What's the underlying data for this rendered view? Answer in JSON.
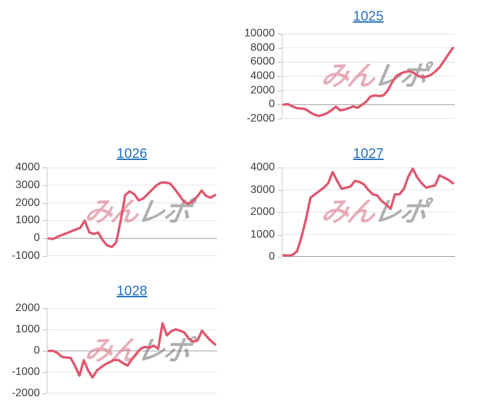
{
  "colors": {
    "line": "#e0566e",
    "title_link": "#2570bd",
    "grid": "#e3e3e3",
    "zero_line": "#9b9b9b",
    "axis_line": "#c8c8c8",
    "tick_text": "#3d3d3d",
    "watermark_pink": "rgba(214,106,124,0.55)",
    "watermark_gray": "rgba(110,110,110,0.55)"
  },
  "watermark": {
    "text": "みんレポ",
    "pink_part": "みん",
    "gray_part": "レポ"
  },
  "chart_data": [
    {
      "type": "line",
      "title": "1025",
      "xlabel": "",
      "ylabel": "",
      "ylim": [
        -2000,
        10000
      ],
      "ytick_step": 2000,
      "yticks": [
        "10000",
        "8000",
        "6000",
        "4000",
        "2000",
        "0",
        "-2000"
      ],
      "grid": true,
      "legend": "none",
      "values": [
        0,
        50,
        -250,
        -500,
        -550,
        -650,
        -1050,
        -1400,
        -1600,
        -1450,
        -1200,
        -800,
        -300,
        -800,
        -700,
        -500,
        -250,
        -450,
        -50,
        400,
        1150,
        1300,
        1200,
        1300,
        2000,
        3150,
        4050,
        4400,
        4600,
        4700,
        4450,
        4050,
        3850,
        3950,
        4200,
        4700,
        5300,
        6200,
        7100,
        8000
      ]
    },
    {
      "type": "line",
      "title": "1026",
      "xlabel": "",
      "ylabel": "",
      "ylim": [
        -1000,
        4000
      ],
      "ytick_step": 1000,
      "yticks": [
        "4000",
        "3000",
        "2000",
        "1000",
        "0",
        "-1000"
      ],
      "grid": true,
      "legend": "none",
      "values": [
        0,
        -30,
        100,
        200,
        300,
        400,
        500,
        600,
        1000,
        350,
        250,
        330,
        -100,
        -400,
        -480,
        -230,
        1000,
        2450,
        2650,
        2500,
        2150,
        2250,
        2500,
        2750,
        3000,
        3150,
        3150,
        3100,
        2800,
        2450,
        2100,
        1950,
        2100,
        2350,
        2700,
        2400,
        2300,
        2450
      ]
    },
    {
      "type": "line",
      "title": "1027",
      "xlabel": "",
      "ylabel": "",
      "ylim": [
        0,
        4000
      ],
      "ytick_step": 1000,
      "yticks": [
        "4000",
        "3000",
        "2000",
        "1000",
        "0"
      ],
      "grid": true,
      "legend": "none",
      "values": [
        70,
        50,
        90,
        250,
        900,
        1700,
        2650,
        2800,
        2950,
        3100,
        3300,
        3800,
        3400,
        3050,
        3100,
        3150,
        3400,
        3350,
        3250,
        3000,
        2800,
        2750,
        2500,
        2350,
        2150,
        2800,
        2800,
        3050,
        3600,
        3950,
        3550,
        3300,
        3100,
        3150,
        3200,
        3650,
        3550,
        3450,
        3300
      ]
    },
    {
      "type": "line",
      "title": "1028",
      "xlabel": "",
      "ylabel": "",
      "ylim": [
        -2000,
        2000
      ],
      "ytick_step": 1000,
      "yticks": [
        "2000",
        "1000",
        "0",
        "-1000",
        "-2000"
      ],
      "grid": true,
      "legend": "none",
      "values": [
        0,
        0,
        -100,
        -280,
        -310,
        -330,
        -710,
        -1160,
        -440,
        -920,
        -1250,
        -920,
        -760,
        -620,
        -520,
        -420,
        -440,
        -580,
        -690,
        -390,
        -130,
        100,
        190,
        140,
        250,
        100,
        1300,
        730,
        930,
        1010,
        950,
        860,
        570,
        440,
        490,
        950,
        700,
        480,
        300
      ]
    }
  ]
}
